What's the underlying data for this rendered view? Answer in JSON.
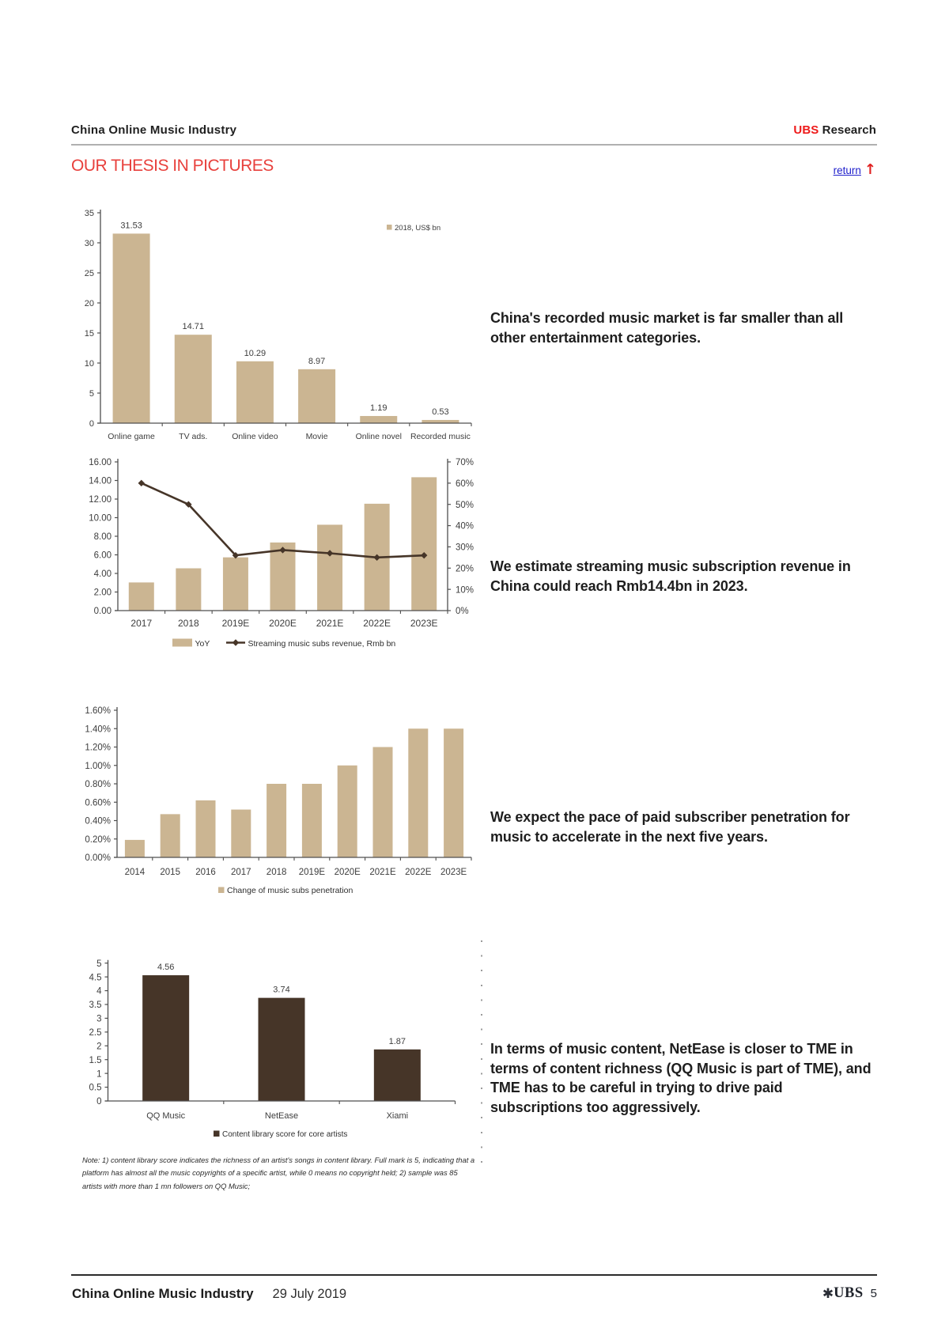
{
  "header": {
    "left_title": "China Online Music Industry",
    "right_brand": "UBS",
    "right_rest": " Research"
  },
  "section": {
    "title": "OUR THESIS IN PICTURES",
    "return_label": "return",
    "return_arrow": "↑"
  },
  "commentary": [
    {
      "text": "China's recorded music market is far smaller than all\nother entertainment categories."
    },
    {
      "text": "We estimate streaming music subscription revenue in\nChina could reach Rmb14.4bn in 2023."
    },
    {
      "text": "We expect the pace of paid subscriber penetration for\nmusic to accelerate in the next five years."
    },
    {
      "text": "In terms of music content, NetEase is closer to TME in\nterms of content richness (QQ Music is part of TME), and\nTME has to be careful in trying to drive paid\nsubscriptions too aggressively."
    }
  ],
  "note": "Note: 1) content library score indicates the richness of an artist's songs in content library. Full mark is 5, indicating that a\nplatform has almost all the music copyrights of a specific artist, while 0 means no copyright held; 2) sample was 85\nartists with more than 1 mn followers on QQ Music;",
  "footer": {
    "title": "China Online Music Industry",
    "date": "29 July 2019",
    "logo_glyph": "✱",
    "brand": "UBS",
    "page_number": "5"
  },
  "colors": {
    "tan_bar": "#cbb592",
    "dark_brown": "#463528",
    "accent_red": "#e8403c",
    "ubs_red": "#ee1a1a",
    "link_blue": "#2121cc",
    "axis_gray": "#4a4a4a"
  },
  "chart_data": [
    {
      "type": "bar",
      "title": "",
      "legend": [
        {
          "marker": "square",
          "label": "2018, US$ bn"
        }
      ],
      "categories": [
        "Online game",
        "TV ads.",
        "Online video",
        "Movie",
        "Online novel",
        "Recorded music"
      ],
      "values": [
        31.53,
        14.71,
        10.29,
        8.97,
        1.19,
        0.53
      ],
      "data_labels": [
        "31.53",
        "14.71",
        "10.29",
        "8.97",
        "1.19",
        "0.53"
      ],
      "ylim": [
        0,
        35
      ],
      "ytick_labels": [
        "0",
        "5",
        "10",
        "15",
        "20",
        "25",
        "30",
        "35"
      ],
      "bar_color": "#cbb592"
    },
    {
      "type": "bar-line",
      "title": "",
      "categories": [
        "2017",
        "2018",
        "2019E",
        "2020E",
        "2021E",
        "2022E",
        "2023E"
      ],
      "series": [
        {
          "name": "YoY",
          "type": "bar",
          "axis": "left",
          "values": [
            3.03,
            4.55,
            5.73,
            7.33,
            9.24,
            11.5,
            14.35
          ],
          "color": "#cbb592"
        },
        {
          "name": "Streaming music subs revenue, Rmb bn",
          "type": "line",
          "axis": "right",
          "values": [
            60,
            50,
            26,
            28.5,
            27,
            25,
            26
          ],
          "color": "#463528"
        }
      ],
      "left_ylim": [
        0,
        16
      ],
      "left_ytick_labels": [
        "0.00",
        "2.00",
        "4.00",
        "6.00",
        "8.00",
        "10.00",
        "12.00",
        "14.00",
        "16.00"
      ],
      "right_ylim": [
        0,
        70
      ],
      "right_ytick_labels": [
        "0%",
        "10%",
        "20%",
        "30%",
        "40%",
        "50%",
        "60%",
        "70%"
      ]
    },
    {
      "type": "bar",
      "title": "",
      "legend": [
        {
          "marker": "square",
          "label": "Change of music subs penetration"
        }
      ],
      "categories": [
        "2014",
        "2015",
        "2016",
        "2017",
        "2018",
        "2019E",
        "2020E",
        "2021E",
        "2022E",
        "2023E"
      ],
      "values": [
        0.19,
        0.47,
        0.62,
        0.52,
        0.8,
        0.8,
        1.0,
        1.2,
        1.4,
        1.4
      ],
      "data_labels": [],
      "ylim": [
        0,
        1.6
      ],
      "ytick_labels": [
        "0.00%",
        "0.20%",
        "0.40%",
        "0.60%",
        "0.80%",
        "1.00%",
        "1.20%",
        "1.40%",
        "1.60%"
      ],
      "bar_color": "#cbb592"
    },
    {
      "type": "bar",
      "title": "",
      "legend": [
        {
          "marker": "square",
          "label": "Content library score for core artists"
        }
      ],
      "categories": [
        "QQ Music",
        "NetEase",
        "Xiami"
      ],
      "values": [
        4.56,
        3.74,
        1.87
      ],
      "data_labels": [
        "4.56",
        "3.74",
        "1.87"
      ],
      "ylim": [
        0,
        5
      ],
      "ytick_labels": [
        "0",
        "0.5",
        "1",
        "1.5",
        "2",
        "2.5",
        "3",
        "3.5",
        "4",
        "4.5",
        "5"
      ],
      "bar_color": "#463528"
    }
  ]
}
